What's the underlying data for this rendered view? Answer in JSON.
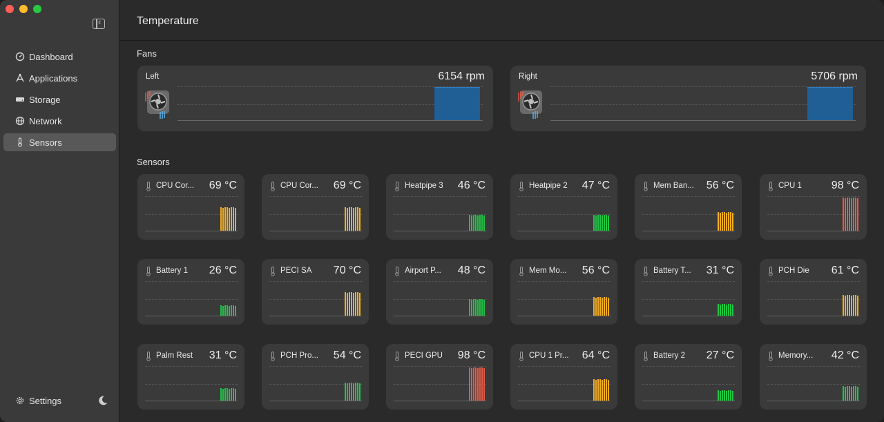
{
  "window": {
    "title": "Temperature"
  },
  "sidebar": {
    "items": [
      {
        "label": "Dashboard",
        "icon": "dashboard-icon",
        "active": false
      },
      {
        "label": "Applications",
        "icon": "applications-icon",
        "active": false
      },
      {
        "label": "Storage",
        "icon": "storage-icon",
        "active": false
      },
      {
        "label": "Network",
        "icon": "network-icon",
        "active": false
      },
      {
        "label": "Sensors",
        "icon": "thermometer-icon",
        "active": true
      }
    ],
    "settings_label": "Settings"
  },
  "fans": {
    "title": "Fans",
    "items": [
      {
        "label": "Left",
        "value": "6154 rpm",
        "level": 0.98
      },
      {
        "label": "Right",
        "value": "5706 rpm",
        "level": 0.98
      }
    ]
  },
  "sensors": {
    "title": "Sensors",
    "items": [
      {
        "name": "CPU Cor...",
        "value": "69 °C",
        "level": 0.69,
        "status": "warm"
      },
      {
        "name": "CPU Cor...",
        "value": "69 °C",
        "level": 0.69,
        "status": "warm"
      },
      {
        "name": "Heatpipe 3",
        "value": "46 °C",
        "level": 0.46,
        "status": "ok"
      },
      {
        "name": "Heatpipe 2",
        "value": "47 °C",
        "level": 0.47,
        "status": "ok"
      },
      {
        "name": "Mem Ban...",
        "value": "56 °C",
        "level": 0.56,
        "status": "warm"
      },
      {
        "name": "CPU 1",
        "value": "98 °C",
        "level": 0.98,
        "status": "hot"
      },
      {
        "name": "Battery 1",
        "value": "26 °C",
        "level": 0.3,
        "status": "ok"
      },
      {
        "name": "PECI SA",
        "value": "70 °C",
        "level": 0.7,
        "status": "warm"
      },
      {
        "name": "Airport P...",
        "value": "48 °C",
        "level": 0.48,
        "status": "ok"
      },
      {
        "name": "Mem Mo...",
        "value": "56 °C",
        "level": 0.56,
        "status": "warm"
      },
      {
        "name": "Battery T...",
        "value": "31 °C",
        "level": 0.34,
        "status": "ok"
      },
      {
        "name": "PCH Die",
        "value": "61 °C",
        "level": 0.61,
        "status": "warm"
      },
      {
        "name": "Palm Rest",
        "value": "31 °C",
        "level": 0.36,
        "status": "ok"
      },
      {
        "name": "PCH Pro...",
        "value": "54 °C",
        "level": 0.54,
        "status": "ok"
      },
      {
        "name": "PECI GPU",
        "value": "98 °C",
        "level": 0.98,
        "status": "hot"
      },
      {
        "name": "CPU 1 Pr...",
        "value": "64 °C",
        "level": 0.64,
        "status": "warm"
      },
      {
        "name": "Battery 2",
        "value": "27 °C",
        "level": 0.3,
        "status": "ok"
      },
      {
        "name": "Memory...",
        "value": "42 °C",
        "level": 0.42,
        "status": "ok"
      }
    ]
  },
  "colors": {
    "ok": "#22c247",
    "warm": "#f0ad22",
    "hot": "#e55a45",
    "fan": "#1f5f96"
  }
}
